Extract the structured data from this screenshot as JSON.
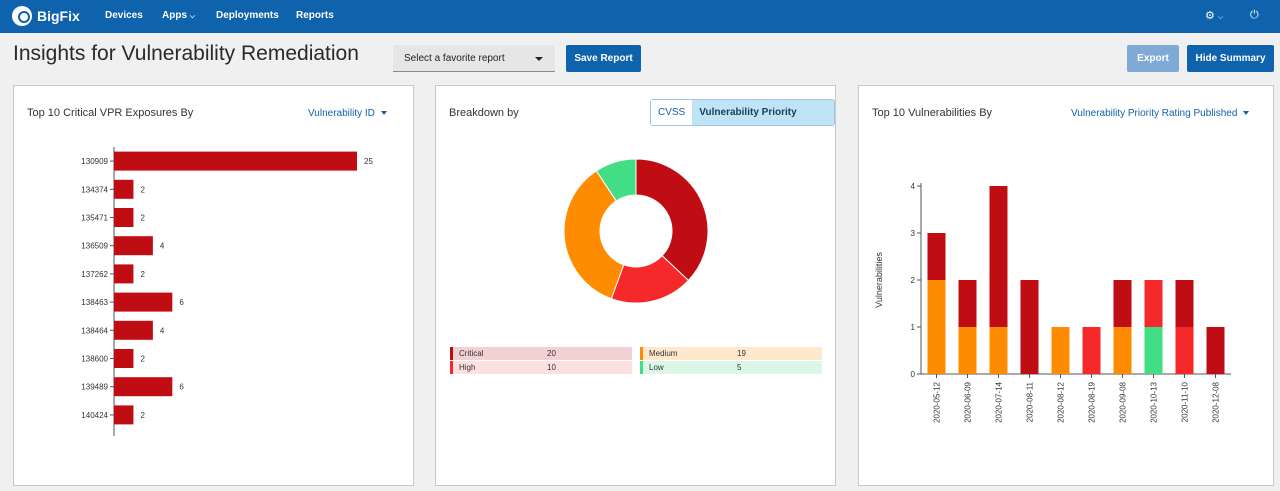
{
  "topbar": {
    "brand": "BigFix",
    "nav": [
      "Devices",
      "Apps",
      "Deployments",
      "Reports"
    ]
  },
  "header": {
    "title": "Insights for Vulnerability Remediation",
    "favorite_placeholder": "Select a favorite report",
    "save_label": "Save Report",
    "export_label": "Export",
    "hide_label": "Hide Summary"
  },
  "panels": {
    "left": {
      "title": "Top 10 Critical VPR Exposures By",
      "dropdown": "Vulnerability ID"
    },
    "middle": {
      "title": "Breakdown by",
      "toggle": [
        "CVSS",
        "Vulnerability Priority Rating"
      ]
    },
    "right": {
      "title": "Top 10 Vulnerabilities By",
      "dropdown": "Vulnerability Priority Rating Published"
    }
  },
  "colors": {
    "critical": "#c00d13",
    "high": "#f5282a",
    "medium": "#ff8c00",
    "low": "#42de86",
    "brand": "#0f62ac"
  },
  "chart_data": [
    {
      "type": "bar",
      "orientation": "horizontal",
      "categories": [
        "130909",
        "134374",
        "135471",
        "136509",
        "137262",
        "138463",
        "138464",
        "138600",
        "139489",
        "140424"
      ],
      "values": [
        25,
        2,
        2,
        4,
        2,
        6,
        4,
        2,
        6,
        2
      ],
      "color": "#c00d13"
    },
    {
      "type": "pie",
      "donut": true,
      "slices": [
        {
          "name": "Critical",
          "value": 20,
          "color": "#c00d13"
        },
        {
          "name": "High",
          "value": 10,
          "color": "#f5282a"
        },
        {
          "name": "Medium",
          "value": 19,
          "color": "#ff8c00"
        },
        {
          "name": "Low",
          "value": 5,
          "color": "#42de86"
        }
      ]
    },
    {
      "type": "bar",
      "stacked": true,
      "categories": [
        "2020-05-12",
        "2020-06-09",
        "2020-07-14",
        "2020-08-11",
        "2020-08-12",
        "2020-08-19",
        "2020-09-08",
        "2020-10-13",
        "2020-11-10",
        "2020-12-08"
      ],
      "ylabel": "Vulnerabilities",
      "ylim": [
        0,
        4
      ],
      "yticks": [
        0,
        1,
        2,
        3,
        4
      ],
      "series": [
        {
          "key": "low",
          "color": "#42de86",
          "values": [
            0,
            0,
            0,
            0,
            0,
            0,
            0,
            1,
            0,
            0
          ]
        },
        {
          "key": "medium",
          "color": "#ff8c00",
          "values": [
            2,
            1,
            1,
            0,
            1,
            0,
            1,
            0,
            0,
            0
          ]
        },
        {
          "key": "high",
          "color": "#f5282a",
          "values": [
            0,
            0,
            0,
            0,
            0,
            1,
            0,
            1,
            1,
            0
          ]
        },
        {
          "key": "critical",
          "color": "#c00d13",
          "values": [
            1,
            1,
            3,
            2,
            0,
            0,
            1,
            0,
            1,
            1
          ]
        }
      ]
    }
  ]
}
